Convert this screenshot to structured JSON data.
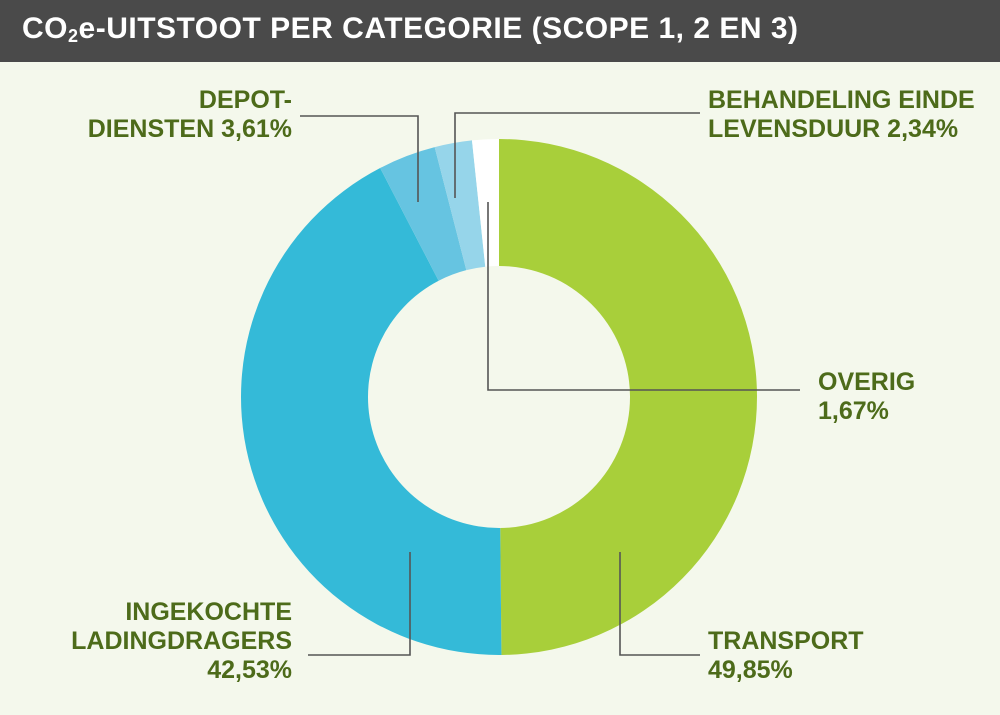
{
  "header": {
    "title_pre": "CO",
    "title_sub": "2",
    "title_post": "e-UITSTOOT PER CATEGORIE (SCOPE 1, 2 EN 3)"
  },
  "colors": {
    "header_bg": "#4a4a4a",
    "background": "#f4f8ec",
    "label_text": "#4d6b1a",
    "leader_line": "#555555"
  },
  "chart_data": {
    "type": "pie",
    "donut": true,
    "title": "CO2e-UITSTOOT PER CATEGORIE (SCOPE 1, 2 EN 3)",
    "slices": [
      {
        "key": "transport",
        "label_lines": [
          "TRANSPORT",
          "49,85%"
        ],
        "value": 49.85,
        "color": "#a8cf3a"
      },
      {
        "key": "ladingdragers",
        "label_lines": [
          "INGEKOCHTE",
          "LADINGDRAGERS",
          "42,53%"
        ],
        "value": 42.53,
        "color": "#34bad8"
      },
      {
        "key": "depot",
        "label_lines": [
          "DEPOT-",
          "DIENSTEN 3,61%"
        ],
        "value": 3.61,
        "color": "#66c4e1"
      },
      {
        "key": "behandeling",
        "label_lines": [
          "BEHANDELING EINDE",
          "LEVENSDUUR 2,34%"
        ],
        "value": 2.34,
        "color": "#96d5ea"
      },
      {
        "key": "overig",
        "label_lines": [
          "OVERIG",
          "1,67%"
        ],
        "value": 1.67,
        "color": "#ffffff"
      }
    ]
  }
}
